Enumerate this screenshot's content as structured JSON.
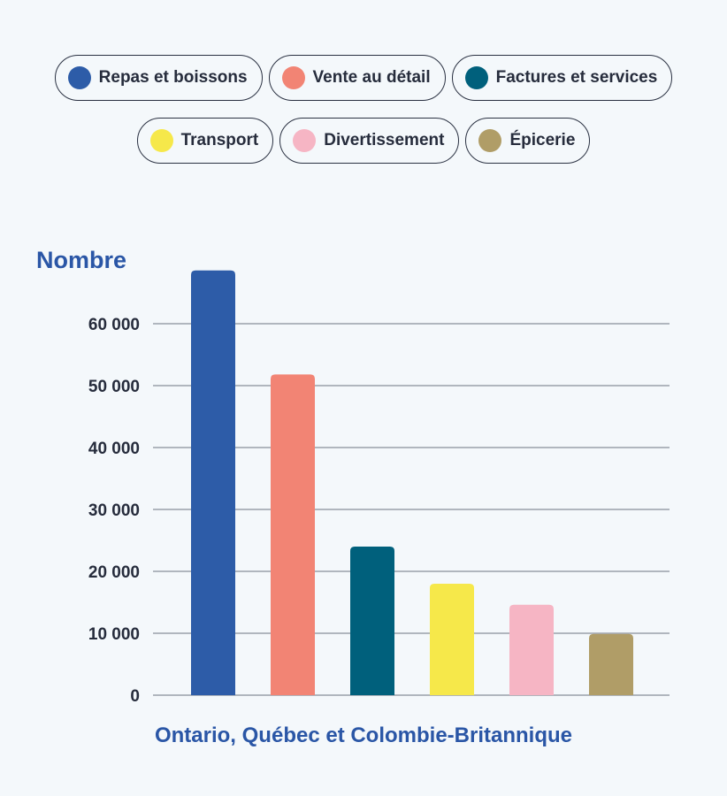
{
  "chart_data": {
    "type": "bar",
    "categories": [
      "Repas et boissons",
      "Vente au détail",
      "Factures et services",
      "Transport",
      "Divertissement",
      "Épicerie"
    ],
    "values": [
      68600,
      51800,
      24000,
      18000,
      14600,
      9900
    ],
    "colors": [
      "#2d5ca8",
      "#f28474",
      "#00607c",
      "#f6e84a",
      "#f6b5c4",
      "#b09d67"
    ],
    "ylabel": "Nombre",
    "xlabel": "Ontario, Québec et Colombie-Britannique",
    "ylim": [
      0,
      70000
    ],
    "yticks": [
      0,
      10000,
      20000,
      30000,
      40000,
      50000,
      60000
    ],
    "ytick_labels": [
      "0",
      "10 000",
      "20 000",
      "30 000",
      "40 000",
      "50 000",
      "60 000"
    ],
    "grid": true,
    "legend_placement": "top"
  }
}
